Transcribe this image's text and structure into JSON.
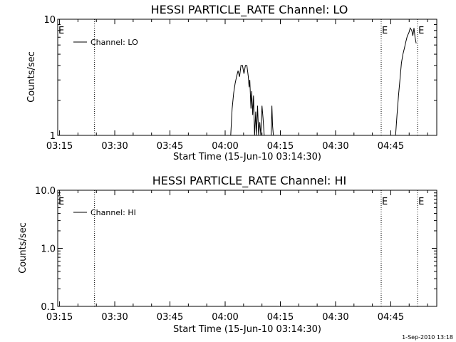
{
  "footer_timestamp": "1-Sep-2010 13:18",
  "chart_data": [
    {
      "type": "line",
      "title": "HESSI PARTICLE_RATE Channel: LO",
      "xlabel": "Start Time (15-Jun-10 03:14:30)",
      "ylabel": "Counts/sec",
      "x_unit": "minutes after 03:14:30",
      "xlim": [
        0,
        103
      ],
      "ylim": [
        1,
        10
      ],
      "y_scale": "log",
      "x_tick_labels": [
        "03:15",
        "03:30",
        "03:45",
        "04:00",
        "04:15",
        "04:30",
        "04:45"
      ],
      "x_tick_values": [
        0.5,
        15.5,
        30.5,
        45.5,
        60.5,
        75.5,
        90.5
      ],
      "y_tick_labels": [
        "1",
        "10"
      ],
      "y_tick_values": [
        1,
        10
      ],
      "event_lines": [
        {
          "x": 10.0,
          "label": ""
        },
        {
          "x": 87.9,
          "label": "E"
        },
        {
          "x": 97.8,
          "label": "E"
        }
      ],
      "legend": {
        "position": "top-left",
        "entries": [
          "Channel: LO"
        ]
      },
      "series": [
        {
          "name": "Channel: LO",
          "segments": [
            [
              [
                47.0,
                1.0
              ],
              [
                47.4,
                1.7
              ],
              [
                47.8,
                2.3
              ],
              [
                48.2,
                2.8
              ],
              [
                48.6,
                3.2
              ],
              [
                49.0,
                3.6
              ],
              [
                49.4,
                3.2
              ],
              [
                49.8,
                4.0
              ],
              [
                50.2,
                4.0
              ],
              [
                50.6,
                3.4
              ],
              [
                51.0,
                4.0
              ],
              [
                51.4,
                4.0
              ],
              [
                51.8,
                3.2
              ],
              [
                52.0,
                2.6
              ],
              [
                52.2,
                3.0
              ],
              [
                52.5,
                1.7
              ],
              [
                52.7,
                2.4
              ],
              [
                53.0,
                1.5
              ],
              [
                53.2,
                2.2
              ],
              [
                53.5,
                1.0
              ],
              [
                53.8,
                1.6
              ],
              [
                54.0,
                1.0
              ],
              [
                54.3,
                1.8
              ],
              [
                54.6,
                1.0
              ],
              [
                54.9,
                1.3
              ],
              [
                55.2,
                1.0
              ],
              [
                55.5,
                1.8
              ],
              [
                55.8,
                1.4
              ],
              [
                56.1,
                1.0
              ]
            ],
            [
              [
                58.0,
                1.0
              ],
              [
                58.2,
                1.8
              ],
              [
                58.4,
                1.2
              ],
              [
                58.6,
                1.0
              ]
            ],
            [
              [
                91.8,
                1.0
              ],
              [
                92.2,
                1.5
              ],
              [
                92.6,
                2.2
              ],
              [
                93.0,
                3.0
              ],
              [
                93.4,
                4.2
              ],
              [
                93.8,
                5.0
              ],
              [
                94.2,
                5.6
              ],
              [
                94.6,
                6.4
              ],
              [
                95.0,
                7.2
              ],
              [
                95.4,
                7.6
              ],
              [
                95.8,
                8.4
              ],
              [
                96.2,
                8.0
              ],
              [
                96.5,
                7.2
              ],
              [
                96.8,
                8.4
              ],
              [
                97.1,
                7.0
              ],
              [
                97.4,
                6.2
              ]
            ]
          ]
        }
      ]
    },
    {
      "type": "line",
      "title": "HESSI PARTICLE_RATE Channel: HI",
      "xlabel": "Start Time (15-Jun-10 03:14:30)",
      "ylabel": "Counts/sec",
      "x_unit": "minutes after 03:14:30",
      "xlim": [
        0,
        103
      ],
      "ylim": [
        0.1,
        10
      ],
      "y_scale": "log",
      "x_tick_labels": [
        "03:15",
        "03:30",
        "03:45",
        "04:00",
        "04:15",
        "04:30",
        "04:45"
      ],
      "x_tick_values": [
        0.5,
        15.5,
        30.5,
        45.5,
        60.5,
        75.5,
        90.5
      ],
      "y_tick_labels": [
        "0.1",
        "1.0",
        "10.0"
      ],
      "y_tick_values": [
        0.1,
        1,
        10
      ],
      "event_lines": [
        {
          "x": 10.0,
          "label": ""
        },
        {
          "x": 87.9,
          "label": "E"
        },
        {
          "x": 97.8,
          "label": "E"
        }
      ],
      "legend": {
        "position": "top-left",
        "entries": [
          "Channel: HI"
        ]
      },
      "series": [
        {
          "name": "Channel: HI",
          "segments": []
        }
      ]
    }
  ]
}
